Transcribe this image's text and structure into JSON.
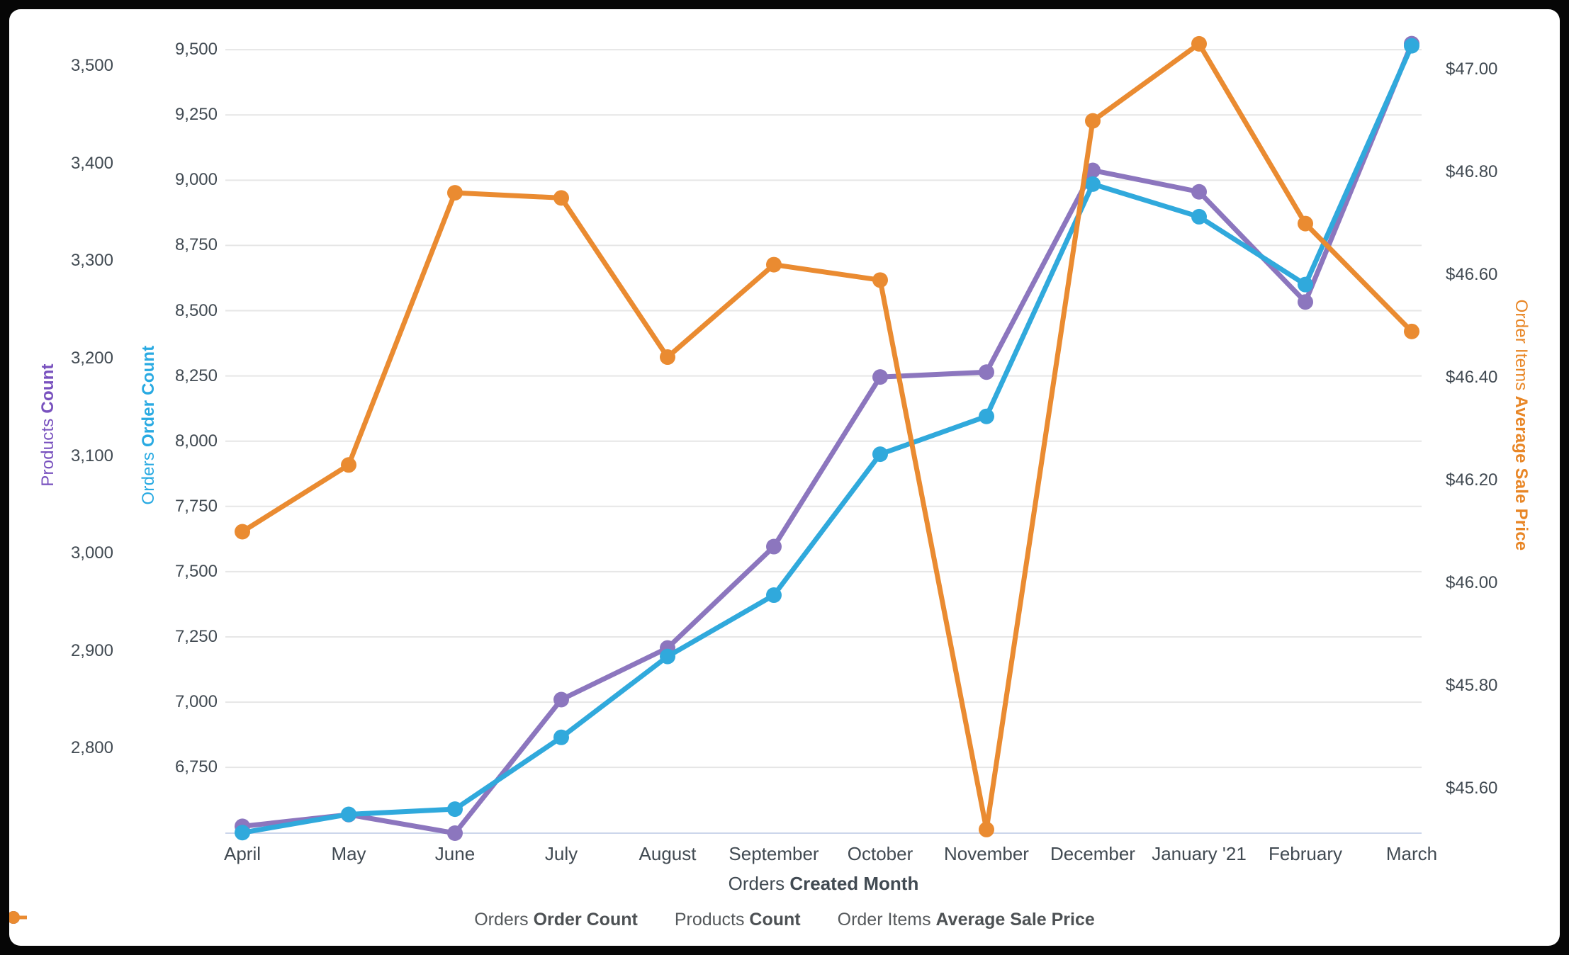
{
  "page": {
    "background_color": "#060606",
    "card_color": "#ffffff"
  },
  "chart_data": {
    "type": "line",
    "x_title": {
      "normal": "Orders",
      "bold": "Created Month"
    },
    "categories": [
      "April",
      "May",
      "June",
      "July",
      "August",
      "September",
      "October",
      "November",
      "December",
      "January '21",
      "February",
      "March"
    ],
    "grid": "horizontal-only",
    "legend_position": "bottom-center",
    "axes": {
      "products": {
        "title_normal": "Products",
        "title_bold": "Count",
        "title_color": "#7851be",
        "side": "left-outer",
        "tick_labels": [
          "3,500",
          "3,400",
          "3,300",
          "3,200",
          "3,100",
          "3,000",
          "2,900",
          "2,800"
        ],
        "tick_values": [
          3500,
          3400,
          3300,
          3200,
          3100,
          3000,
          2900,
          2800
        ],
        "range": [
          2713,
          3546
        ],
        "gridlines": false
      },
      "orders": {
        "title_normal": "Orders",
        "title_bold": "Order Count",
        "title_color": "#29aae2",
        "side": "left-inner",
        "tick_labels": [
          "9,500",
          "9,250",
          "9,000",
          "8,750",
          "8,500",
          "8,250",
          "8,000",
          "7,750",
          "7,500",
          "7,250",
          "7,000",
          "6,750"
        ],
        "tick_values": [
          9500,
          9250,
          9000,
          8750,
          8500,
          8250,
          8000,
          7750,
          7500,
          7250,
          7000,
          6750
        ],
        "range": [
          6498,
          9609
        ],
        "gridlines": true
      },
      "price": {
        "title_normal": "Order Items",
        "title_bold": "Average Sale Price",
        "title_color": "#e88626",
        "side": "right",
        "tick_labels": [
          "$47.00",
          "$46.80",
          "$46.60",
          "$46.40",
          "$46.20",
          "$46.00",
          "$45.80",
          "$45.60"
        ],
        "tick_values": [
          47.0,
          46.8,
          46.6,
          46.4,
          46.2,
          46.0,
          45.8,
          45.6
        ],
        "range": [
          45.513,
          47.094
        ],
        "gridlines": false
      }
    },
    "series": [
      {
        "name": "Orders Order Count",
        "axis": "orders",
        "color": "#30a9dc",
        "values": [
          6500,
          6570,
          6590,
          6865,
          7175,
          7410,
          7950,
          8095,
          8985,
          8860,
          8600,
          9515
        ]
      },
      {
        "name": "Products Count",
        "axis": "products",
        "color": "#8c76be",
        "values": [
          2720,
          2732,
          2713,
          2850,
          2903,
          3007,
          3181,
          3186,
          3393,
          3371,
          3258,
          3523
        ]
      },
      {
        "name": "Order Items Average Sale Price",
        "axis": "price",
        "color": "#ea8b31",
        "values": [
          46.1,
          46.23,
          46.76,
          46.75,
          46.44,
          46.62,
          46.59,
          45.52,
          46.9,
          47.05,
          46.7,
          46.49
        ]
      }
    ],
    "legend": [
      {
        "normal": "Orders",
        "bold": "Order Count",
        "color": "#30a9dc"
      },
      {
        "normal": "Products",
        "bold": "Count",
        "color": "#8c76be"
      },
      {
        "normal": "Order Items",
        "bold": "Average Sale Price",
        "color": "#ea8b31"
      }
    ],
    "colors": {
      "gridline": "#e6e6e6",
      "baseline": "#ccd6eb",
      "tick_text": "#414a52"
    }
  }
}
